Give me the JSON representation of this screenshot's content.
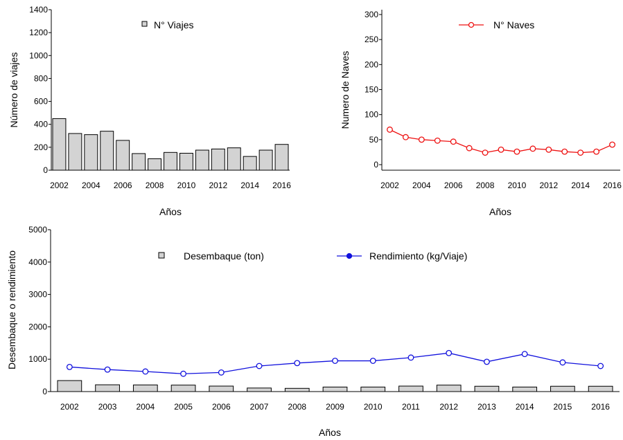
{
  "chart_data": [
    {
      "type": "bar",
      "x": [
        2002,
        2003,
        2004,
        2005,
        2006,
        2007,
        2008,
        2009,
        2010,
        2011,
        2012,
        2013,
        2014,
        2015,
        2016
      ],
      "x_tick_labels": [
        "2002",
        "2004",
        "2006",
        "2008",
        "2010",
        "2012",
        "2014",
        "2016"
      ],
      "x_tick_values": [
        2002,
        2004,
        2006,
        2008,
        2010,
        2012,
        2014,
        2016
      ],
      "series": [
        {
          "name": "N° Viajes",
          "color": "#d3d3d3",
          "values": [
            450,
            320,
            310,
            340,
            260,
            145,
            100,
            155,
            148,
            175,
            185,
            195,
            120,
            175,
            225
          ]
        }
      ],
      "xlabel": "Años",
      "ylabel": "Número de viajes",
      "ylim": [
        0,
        1400
      ],
      "y_ticks": [
        0,
        200,
        400,
        600,
        800,
        1000,
        1200,
        1400
      ],
      "legend_position": "top-center",
      "grid": false
    },
    {
      "type": "line",
      "x": [
        2002,
        2003,
        2004,
        2005,
        2006,
        2007,
        2008,
        2009,
        2010,
        2011,
        2012,
        2013,
        2014,
        2015,
        2016
      ],
      "x_tick_labels": [
        "2002",
        "2004",
        "2006",
        "2008",
        "2010",
        "2012",
        "2014",
        "2016"
      ],
      "x_tick_values": [
        2002,
        2004,
        2006,
        2008,
        2010,
        2012,
        2014,
        2016
      ],
      "series": [
        {
          "name": "N° Naves",
          "color": "#ee1111",
          "values": [
            70,
            55,
            50,
            48,
            46,
            33,
            24,
            30,
            26,
            32,
            30,
            26,
            24,
            26,
            40
          ]
        }
      ],
      "xlabel": "Años",
      "ylabel": "Numero de Naves",
      "ylim": [
        0,
        300
      ],
      "y_ticks": [
        0,
        50,
        100,
        150,
        200,
        250,
        300
      ],
      "legend_position": "top-center",
      "grid": false
    },
    {
      "type": "bar+line",
      "categories": [
        "2002",
        "2003",
        "2004",
        "2005",
        "2006",
        "2007",
        "2008",
        "2009",
        "2010",
        "2011",
        "2012",
        "2013",
        "2014",
        "2015",
        "2016"
      ],
      "series": [
        {
          "name": "Desembaque (ton)",
          "type": "bar",
          "color": "#d3d3d3",
          "values": [
            340,
            210,
            205,
            200,
            170,
            110,
            100,
            140,
            140,
            170,
            200,
            165,
            140,
            165,
            165
          ]
        },
        {
          "name": "Rendimiento (kg/Viaje)",
          "type": "line",
          "color": "#1111dd",
          "values": [
            760,
            680,
            620,
            550,
            590,
            790,
            880,
            950,
            950,
            1050,
            1190,
            920,
            1160,
            900,
            790
          ]
        }
      ],
      "xlabel": "Años",
      "ylabel": "Desembaque o rendimiento",
      "ylim": [
        0,
        5000
      ],
      "y_ticks": [
        0,
        1000,
        2000,
        3000,
        4000,
        5000
      ],
      "legend_position": "top-center",
      "grid": false
    }
  ]
}
